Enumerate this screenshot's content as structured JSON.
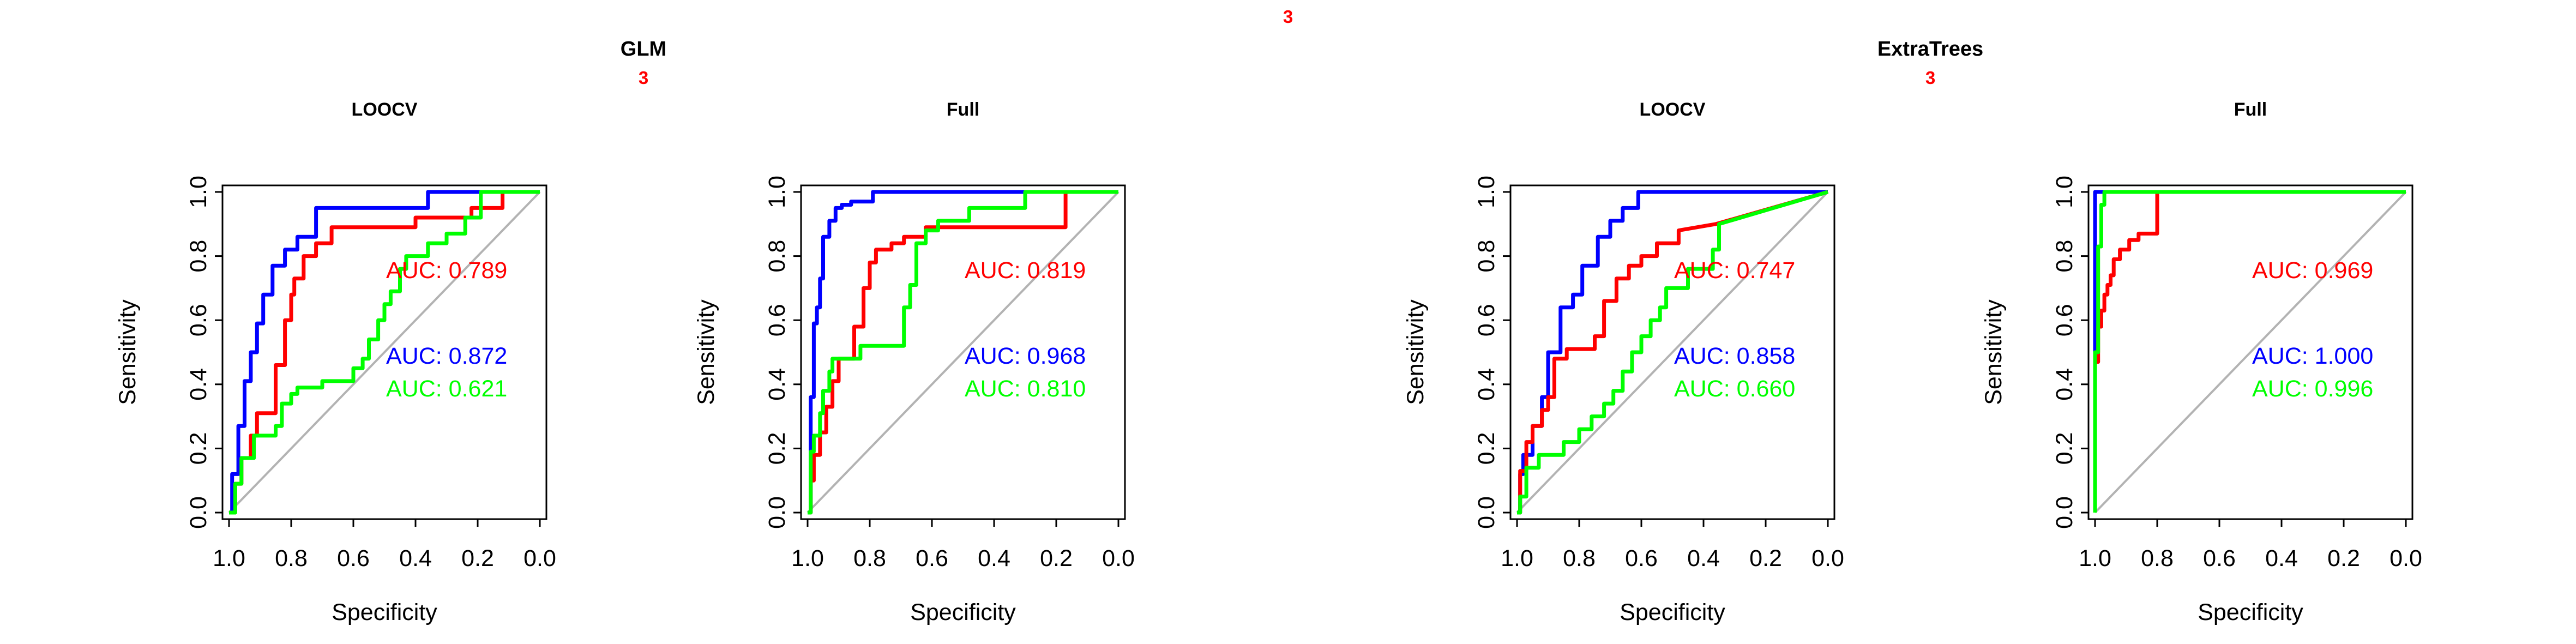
{
  "figure": {
    "top_label": "3",
    "top_label_color": "#ff0000",
    "colors": {
      "blue": "#0000ff",
      "red": "#ff0000",
      "green": "#00ff00",
      "diagonal": "#bebebe"
    }
  },
  "groups": [
    {
      "title": "GLM",
      "sub_label": "3"
    },
    {
      "title": "ExtraTrees",
      "sub_label": "3"
    }
  ],
  "chart_data": [
    {
      "type": "line",
      "group": "GLM",
      "title": "LOOCV",
      "xlabel": "Specificity",
      "ylabel": "Sensitivity",
      "xlim": [
        1.0,
        0.0
      ],
      "ylim": [
        0.0,
        1.0
      ],
      "x_reversed": true,
      "xticks": [
        "1.0",
        "0.8",
        "0.6",
        "0.4",
        "0.2",
        "0.0"
      ],
      "yticks": [
        "0.0",
        "0.2",
        "0.4",
        "0.6",
        "0.8",
        "1.0"
      ],
      "grid": false,
      "diagonal": true,
      "series": [
        {
          "color": "#0000ff",
          "auc": "AUC: 0.872",
          "x": [
            1.0,
            0.99,
            0.99,
            0.97,
            0.97,
            0.95,
            0.95,
            0.93,
            0.93,
            0.91,
            0.91,
            0.89,
            0.89,
            0.86,
            0.86,
            0.82,
            0.82,
            0.78,
            0.78,
            0.72,
            0.72,
            0.36,
            0.36,
            0.18,
            0.18,
            0.0
          ],
          "y": [
            0.0,
            0.0,
            0.12,
            0.12,
            0.27,
            0.27,
            0.41,
            0.41,
            0.5,
            0.5,
            0.59,
            0.59,
            0.68,
            0.68,
            0.77,
            0.77,
            0.82,
            0.82,
            0.86,
            0.86,
            0.95,
            0.95,
            1.0,
            1.0,
            1.0,
            1.0
          ]
        },
        {
          "color": "#ff0000",
          "auc": "AUC: 0.789",
          "x": [
            1.0,
            0.98,
            0.98,
            0.96,
            0.96,
            0.93,
            0.93,
            0.91,
            0.91,
            0.85,
            0.85,
            0.82,
            0.82,
            0.8,
            0.8,
            0.79,
            0.79,
            0.76,
            0.76,
            0.72,
            0.72,
            0.67,
            0.67,
            0.4,
            0.4,
            0.22,
            0.22,
            0.12,
            0.12,
            0.0
          ],
          "y": [
            0.0,
            0.0,
            0.09,
            0.09,
            0.17,
            0.17,
            0.24,
            0.24,
            0.31,
            0.31,
            0.46,
            0.46,
            0.6,
            0.6,
            0.68,
            0.68,
            0.73,
            0.73,
            0.8,
            0.8,
            0.84,
            0.84,
            0.89,
            0.89,
            0.92,
            0.92,
            0.95,
            0.95,
            1.0,
            1.0
          ]
        },
        {
          "color": "#00ff00",
          "auc": "AUC: 0.621",
          "x": [
            1.0,
            0.98,
            0.98,
            0.96,
            0.96,
            0.92,
            0.92,
            0.85,
            0.85,
            0.83,
            0.83,
            0.8,
            0.8,
            0.78,
            0.78,
            0.76,
            0.76,
            0.7,
            0.7,
            0.6,
            0.6,
            0.57,
            0.57,
            0.55,
            0.55,
            0.52,
            0.52,
            0.5,
            0.5,
            0.48,
            0.48,
            0.45,
            0.45,
            0.43,
            0.43,
            0.36,
            0.36,
            0.3,
            0.3,
            0.24,
            0.24,
            0.19,
            0.19,
            0.15,
            0.15,
            0.0
          ],
          "y": [
            0.0,
            0.0,
            0.09,
            0.09,
            0.17,
            0.17,
            0.24,
            0.24,
            0.27,
            0.27,
            0.34,
            0.34,
            0.37,
            0.37,
            0.39,
            0.39,
            0.39,
            0.39,
            0.41,
            0.41,
            0.45,
            0.45,
            0.48,
            0.48,
            0.54,
            0.54,
            0.6,
            0.6,
            0.65,
            0.65,
            0.69,
            0.69,
            0.76,
            0.76,
            0.8,
            0.8,
            0.84,
            0.84,
            0.87,
            0.87,
            0.92,
            0.92,
            1.0,
            1.0,
            1.0,
            1.0
          ]
        }
      ]
    },
    {
      "type": "line",
      "group": "GLM",
      "title": "Full",
      "xlabel": "Specificity",
      "ylabel": "Sensitivity",
      "xlim": [
        1.0,
        0.0
      ],
      "ylim": [
        0.0,
        1.0
      ],
      "x_reversed": true,
      "xticks": [
        "1.0",
        "0.8",
        "0.6",
        "0.4",
        "0.2",
        "0.0"
      ],
      "yticks": [
        "0.0",
        "0.2",
        "0.4",
        "0.6",
        "0.8",
        "1.0"
      ],
      "grid": false,
      "diagonal": true,
      "series": [
        {
          "color": "#0000ff",
          "auc": "AUC: 0.968",
          "x": [
            1.0,
            0.99,
            0.99,
            0.98,
            0.98,
            0.97,
            0.97,
            0.96,
            0.96,
            0.95,
            0.95,
            0.93,
            0.93,
            0.91,
            0.91,
            0.89,
            0.89,
            0.86,
            0.86,
            0.79,
            0.79,
            0.46,
            0.46,
            0.0
          ],
          "y": [
            0.0,
            0.0,
            0.36,
            0.36,
            0.59,
            0.59,
            0.64,
            0.64,
            0.73,
            0.73,
            0.86,
            0.86,
            0.91,
            0.91,
            0.95,
            0.95,
            0.96,
            0.96,
            0.97,
            0.97,
            1.0,
            1.0,
            1.0,
            1.0
          ]
        },
        {
          "color": "#ff0000",
          "auc": "AUC: 0.819",
          "x": [
            1.0,
            0.99,
            0.99,
            0.98,
            0.98,
            0.96,
            0.96,
            0.94,
            0.94,
            0.92,
            0.92,
            0.9,
            0.9,
            0.85,
            0.85,
            0.82,
            0.82,
            0.8,
            0.8,
            0.78,
            0.78,
            0.73,
            0.73,
            0.69,
            0.69,
            0.62,
            0.62,
            0.17,
            0.17,
            0.0
          ],
          "y": [
            0.0,
            0.0,
            0.1,
            0.1,
            0.18,
            0.18,
            0.25,
            0.25,
            0.33,
            0.33,
            0.41,
            0.41,
            0.48,
            0.48,
            0.58,
            0.58,
            0.7,
            0.7,
            0.78,
            0.78,
            0.82,
            0.82,
            0.84,
            0.84,
            0.86,
            0.86,
            0.89,
            0.89,
            1.0,
            1.0
          ]
        },
        {
          "color": "#00ff00",
          "auc": "AUC: 0.810",
          "x": [
            1.0,
            0.99,
            0.99,
            0.98,
            0.98,
            0.96,
            0.96,
            0.95,
            0.95,
            0.93,
            0.93,
            0.92,
            0.92,
            0.83,
            0.83,
            0.73,
            0.73,
            0.69,
            0.69,
            0.67,
            0.67,
            0.65,
            0.65,
            0.62,
            0.62,
            0.58,
            0.58,
            0.48,
            0.48,
            0.3,
            0.3,
            0.0
          ],
          "y": [
            0.0,
            0.0,
            0.19,
            0.19,
            0.24,
            0.24,
            0.31,
            0.31,
            0.38,
            0.38,
            0.44,
            0.44,
            0.48,
            0.48,
            0.52,
            0.52,
            0.52,
            0.52,
            0.64,
            0.64,
            0.71,
            0.71,
            0.84,
            0.84,
            0.88,
            0.88,
            0.91,
            0.91,
            0.95,
            0.95,
            1.0,
            1.0
          ]
        }
      ]
    },
    {
      "type": "line",
      "group": "ExtraTrees",
      "title": "LOOCV",
      "xlabel": "Specificity",
      "ylabel": "Sensitivity",
      "xlim": [
        1.0,
        0.0
      ],
      "ylim": [
        0.0,
        1.0
      ],
      "x_reversed": true,
      "xticks": [
        "1.0",
        "0.8",
        "0.6",
        "0.4",
        "0.2",
        "0.0"
      ],
      "yticks": [
        "0.0",
        "0.2",
        "0.4",
        "0.6",
        "0.8",
        "1.0"
      ],
      "grid": false,
      "diagonal": true,
      "series": [
        {
          "color": "#0000ff",
          "auc": "AUC: 0.858",
          "x": [
            1.0,
            0.99,
            0.99,
            0.98,
            0.98,
            0.95,
            0.95,
            0.92,
            0.92,
            0.9,
            0.9,
            0.86,
            0.86,
            0.82,
            0.82,
            0.79,
            0.79,
            0.74,
            0.74,
            0.7,
            0.7,
            0.66,
            0.66,
            0.61,
            0.61,
            0.55,
            0.55,
            0.15,
            0.15,
            0.0
          ],
          "y": [
            0.0,
            0.0,
            0.12,
            0.12,
            0.18,
            0.18,
            0.27,
            0.27,
            0.36,
            0.36,
            0.5,
            0.5,
            0.64,
            0.64,
            0.68,
            0.68,
            0.77,
            0.77,
            0.86,
            0.86,
            0.91,
            0.91,
            0.95,
            0.95,
            1.0,
            1.0,
            1.0,
            1.0,
            1.0,
            1.0
          ]
        },
        {
          "color": "#ff0000",
          "auc": "AUC: 0.747",
          "x": [
            1.0,
            0.99,
            0.99,
            0.97,
            0.97,
            0.95,
            0.95,
            0.92,
            0.92,
            0.9,
            0.9,
            0.88,
            0.88,
            0.84,
            0.84,
            0.75,
            0.75,
            0.72,
            0.72,
            0.68,
            0.68,
            0.64,
            0.64,
            0.6,
            0.6,
            0.55,
            0.55,
            0.48,
            0.48,
            0.36,
            0.0
          ],
          "y": [
            0.0,
            0.0,
            0.13,
            0.13,
            0.22,
            0.22,
            0.27,
            0.27,
            0.32,
            0.32,
            0.36,
            0.36,
            0.48,
            0.48,
            0.51,
            0.51,
            0.55,
            0.55,
            0.66,
            0.66,
            0.73,
            0.73,
            0.77,
            0.77,
            0.8,
            0.8,
            0.84,
            0.84,
            0.88,
            0.9,
            1.0
          ]
        },
        {
          "color": "#00ff00",
          "auc": "AUC: 0.660",
          "x": [
            1.0,
            0.99,
            0.99,
            0.97,
            0.97,
            0.93,
            0.93,
            0.85,
            0.85,
            0.8,
            0.8,
            0.76,
            0.76,
            0.72,
            0.72,
            0.69,
            0.69,
            0.66,
            0.66,
            0.63,
            0.63,
            0.6,
            0.6,
            0.57,
            0.57,
            0.54,
            0.54,
            0.52,
            0.52,
            0.45,
            0.45,
            0.37,
            0.37,
            0.35,
            0.35,
            0.0
          ],
          "y": [
            0.0,
            0.0,
            0.05,
            0.05,
            0.14,
            0.14,
            0.18,
            0.18,
            0.22,
            0.22,
            0.26,
            0.26,
            0.3,
            0.3,
            0.34,
            0.34,
            0.38,
            0.38,
            0.44,
            0.44,
            0.5,
            0.5,
            0.55,
            0.55,
            0.6,
            0.6,
            0.64,
            0.64,
            0.7,
            0.7,
            0.76,
            0.76,
            0.82,
            0.82,
            0.9,
            1.0
          ]
        }
      ]
    },
    {
      "type": "line",
      "group": "ExtraTrees",
      "title": "Full",
      "xlabel": "Specificity",
      "ylabel": "Sensitivity",
      "xlim": [
        1.0,
        0.0
      ],
      "ylim": [
        0.0,
        1.0
      ],
      "x_reversed": true,
      "xticks": [
        "1.0",
        "0.8",
        "0.6",
        "0.4",
        "0.2",
        "0.0"
      ],
      "yticks": [
        "0.0",
        "0.2",
        "0.4",
        "0.6",
        "0.8",
        "1.0"
      ],
      "grid": false,
      "diagonal": true,
      "series": [
        {
          "color": "#0000ff",
          "auc": "AUC: 1.000",
          "x": [
            1.0,
            1.0,
            0.0
          ],
          "y": [
            0.0,
            1.0,
            1.0
          ]
        },
        {
          "color": "#ff0000",
          "auc": "AUC: 0.969",
          "x": [
            1.0,
            1.0,
            0.99,
            0.99,
            0.98,
            0.98,
            0.97,
            0.97,
            0.96,
            0.96,
            0.95,
            0.95,
            0.94,
            0.94,
            0.92,
            0.92,
            0.89,
            0.89,
            0.86,
            0.86,
            0.8,
            0.8,
            0.0
          ],
          "y": [
            0.0,
            0.47,
            0.47,
            0.58,
            0.58,
            0.63,
            0.63,
            0.68,
            0.68,
            0.71,
            0.71,
            0.74,
            0.74,
            0.79,
            0.79,
            0.82,
            0.82,
            0.85,
            0.85,
            0.87,
            0.87,
            1.0,
            1.0
          ]
        },
        {
          "color": "#00ff00",
          "auc": "AUC: 0.996",
          "x": [
            1.0,
            1.0,
            0.99,
            0.99,
            0.98,
            0.98,
            0.97,
            0.97,
            0.0
          ],
          "y": [
            0.0,
            0.5,
            0.5,
            0.83,
            0.83,
            0.96,
            0.96,
            1.0,
            1.0
          ]
        }
      ]
    }
  ]
}
